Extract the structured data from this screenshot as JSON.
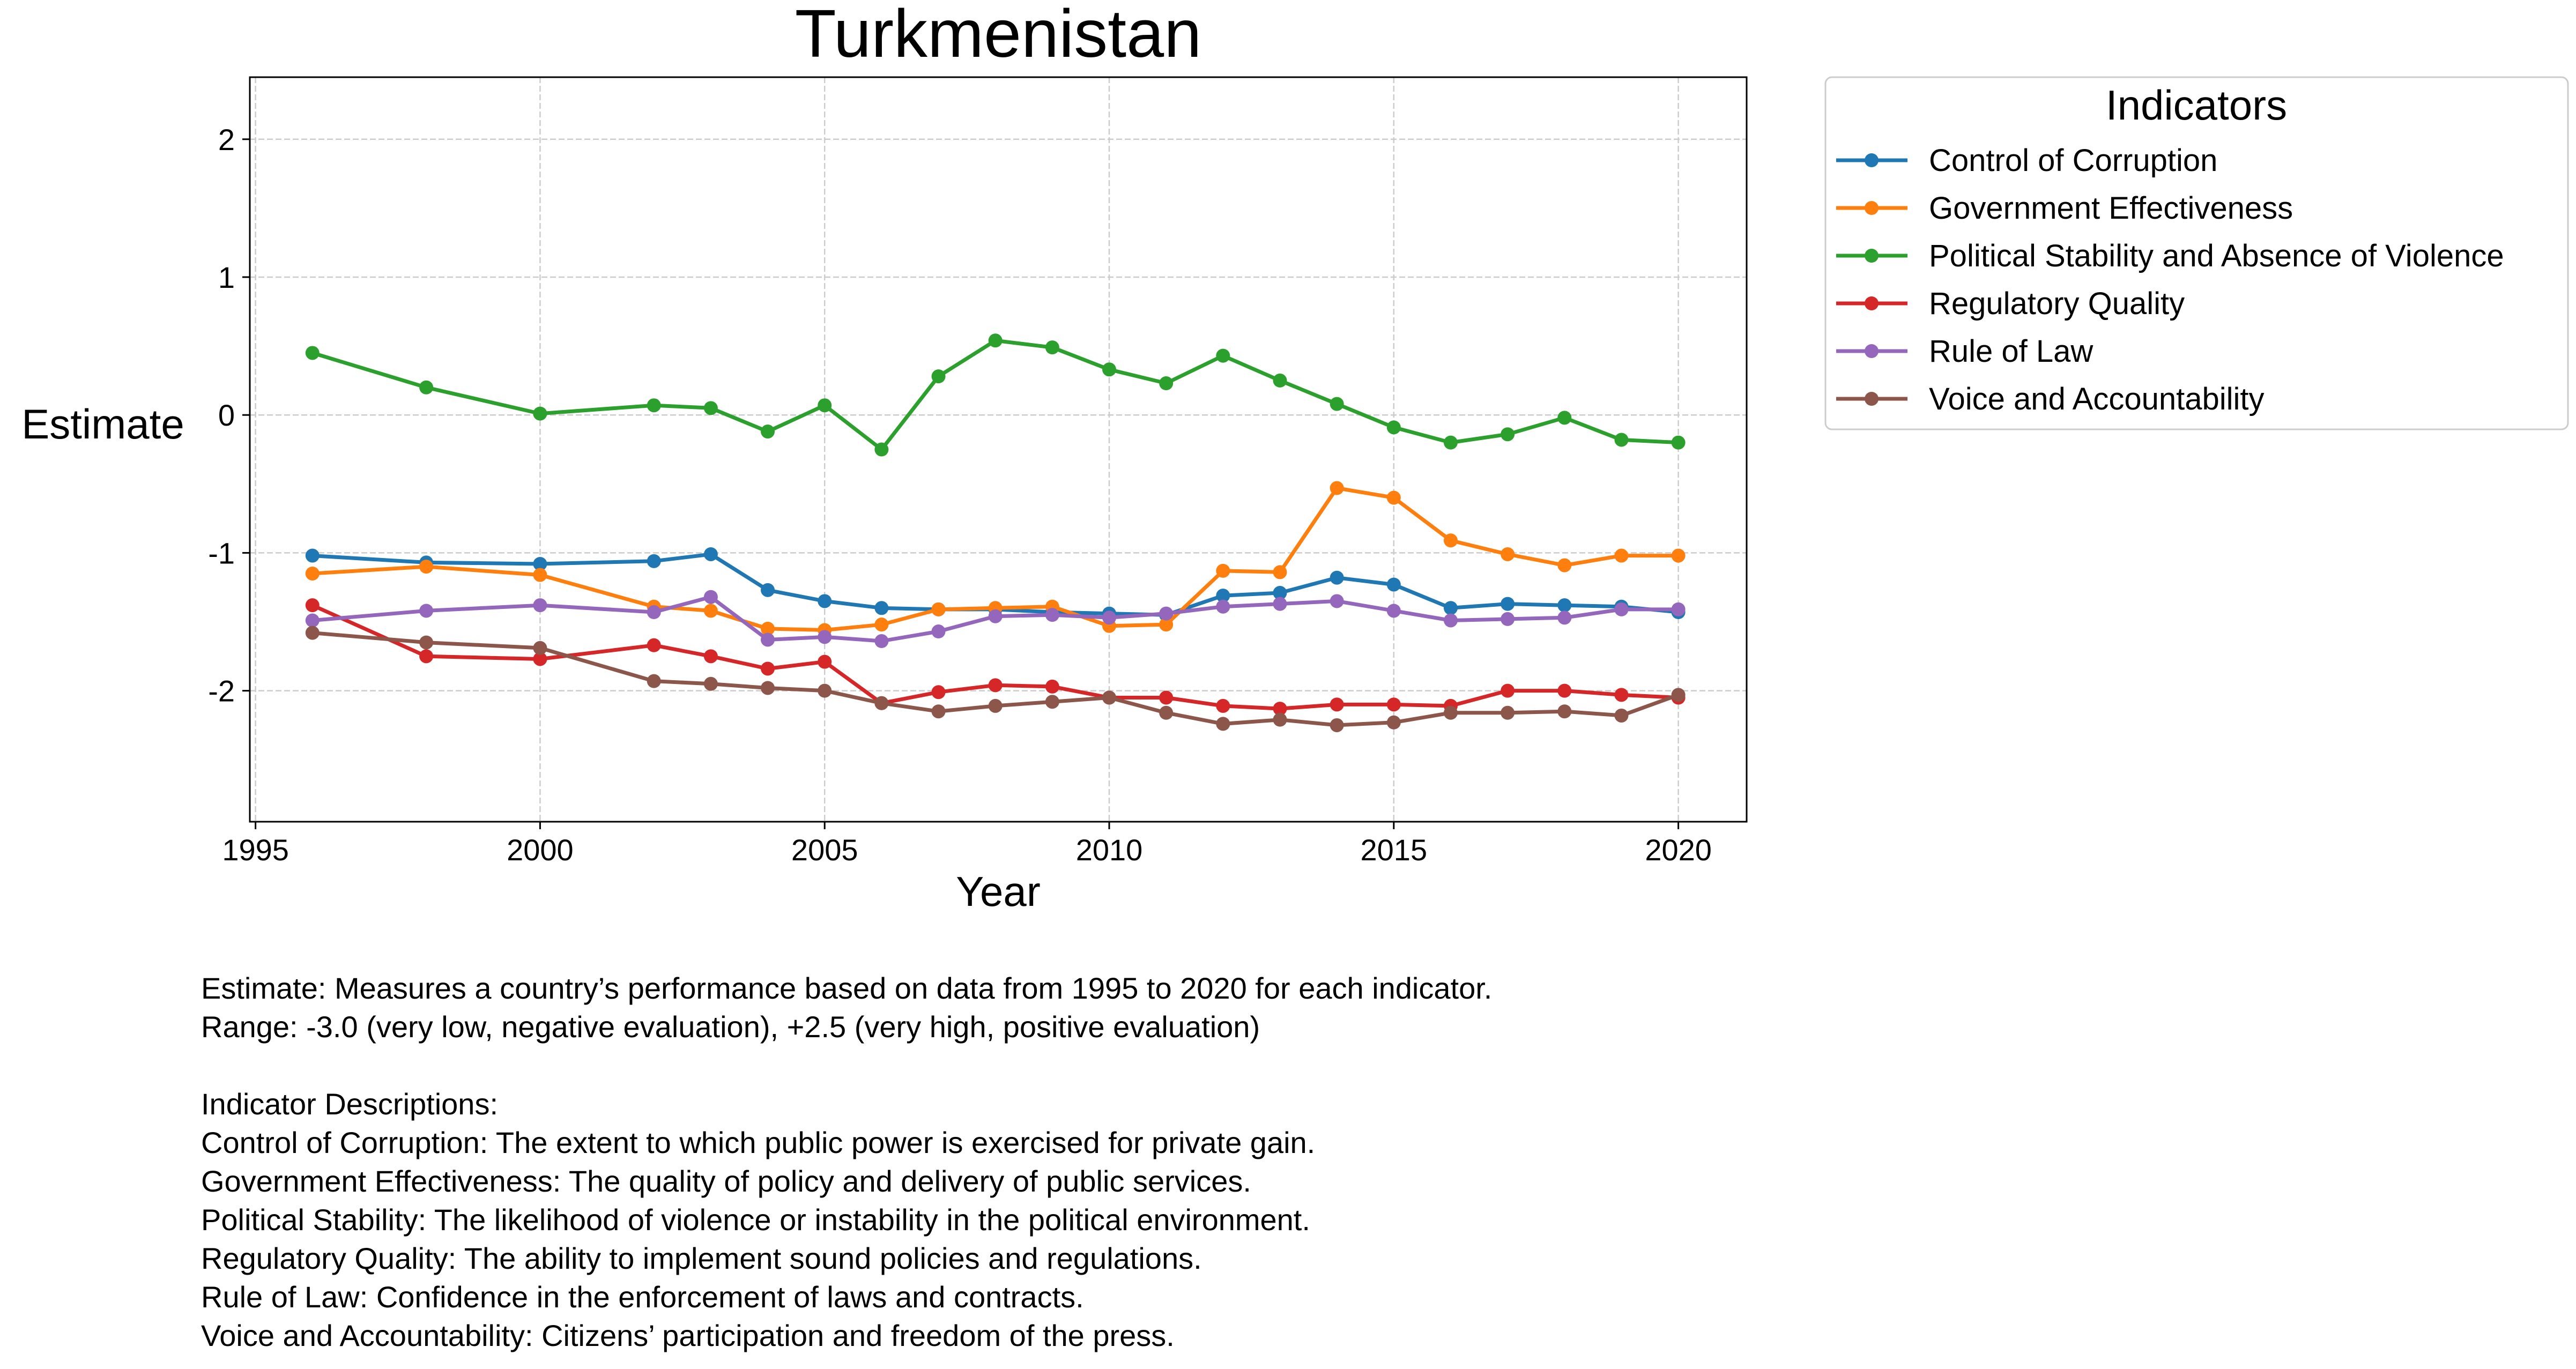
{
  "chart_data": {
    "type": "line",
    "title": "Turkmenistan",
    "xlabel": "Year",
    "ylabel": "Estimate",
    "xlim": [
      1994.9,
      2021.2
    ],
    "ylim": [
      -2.95,
      2.45
    ],
    "x_ticks": [
      1995,
      2000,
      2005,
      2010,
      2015,
      2020
    ],
    "y_ticks": [
      2,
      1,
      0,
      -1,
      -2
    ],
    "grid": true,
    "legend": {
      "title": "Indicators",
      "placement": "outside-top-right"
    },
    "x": [
      1996,
      1998,
      2000,
      2002,
      2003,
      2004,
      2005,
      2006,
      2007,
      2008,
      2009,
      2010,
      2011,
      2012,
      2013,
      2014,
      2015,
      2016,
      2017,
      2018,
      2019,
      2020
    ],
    "series": [
      {
        "name": "Control of Corruption",
        "color": "#1f77b4",
        "values": [
          -1.02,
          -1.07,
          -1.08,
          -1.06,
          -1.01,
          -1.27,
          -1.35,
          -1.4,
          -1.41,
          -1.41,
          -1.43,
          -1.44,
          -1.45,
          -1.31,
          -1.29,
          -1.18,
          -1.23,
          -1.4,
          -1.37,
          -1.38,
          -1.39,
          -1.43
        ]
      },
      {
        "name": "Government Effectiveness",
        "color": "#ff7f0e",
        "values": [
          -1.15,
          -1.1,
          -1.16,
          -1.39,
          -1.42,
          -1.55,
          -1.56,
          -1.52,
          -1.41,
          -1.4,
          -1.39,
          -1.53,
          -1.52,
          -1.13,
          -1.14,
          -0.53,
          -0.6,
          -0.91,
          -1.01,
          -1.09,
          -1.02,
          -1.02
        ]
      },
      {
        "name": "Political Stability and Absence of Violence",
        "color": "#2ca02c",
        "values": [
          0.45,
          0.2,
          0.01,
          0.07,
          0.05,
          -0.12,
          0.07,
          -0.25,
          0.28,
          0.54,
          0.49,
          0.33,
          0.23,
          0.43,
          0.25,
          0.08,
          -0.09,
          -0.2,
          -0.14,
          -0.02,
          -0.18,
          -0.2
        ]
      },
      {
        "name": "Regulatory Quality",
        "color": "#d62728",
        "values": [
          -1.38,
          -1.75,
          -1.77,
          -1.67,
          -1.75,
          -1.84,
          -1.79,
          -2.09,
          -2.01,
          -1.96,
          -1.97,
          -2.05,
          -2.05,
          -2.11,
          -2.13,
          -2.1,
          -2.1,
          -2.11,
          -2.0,
          -2.0,
          -2.03,
          -2.05
        ]
      },
      {
        "name": "Rule of Law",
        "color": "#9467bd",
        "values": [
          -1.49,
          -1.42,
          -1.38,
          -1.43,
          -1.32,
          -1.63,
          -1.61,
          -1.64,
          -1.57,
          -1.46,
          -1.45,
          -1.47,
          -1.44,
          -1.39,
          -1.37,
          -1.35,
          -1.42,
          -1.49,
          -1.48,
          -1.47,
          -1.41,
          -1.41
        ]
      },
      {
        "name": "Voice and Accountability",
        "color": "#8c564b",
        "values": [
          -1.58,
          -1.65,
          -1.69,
          -1.93,
          -1.95,
          -1.98,
          -2.0,
          -2.09,
          -2.15,
          -2.11,
          -2.08,
          -2.05,
          -2.16,
          -2.24,
          -2.21,
          -2.25,
          -2.23,
          -2.16,
          -2.16,
          -2.15,
          -2.18,
          -2.03
        ]
      }
    ]
  },
  "notes": {
    "estimate_line1": "Estimate: Measures a country’s performance based on data from 1995 to 2020 for each indicator.",
    "estimate_line2": "Range: -3.0 (very low, negative evaluation), +2.5 (very high, positive evaluation)",
    "descriptions_heading": "Indicator Descriptions:",
    "descriptions": [
      "Control of Corruption: The extent to which public power is exercised for private gain.",
      "Government Effectiveness: The quality of policy and delivery of public services.",
      "Political Stability: The likelihood of violence or instability in the political environment.",
      "Regulatory Quality: The ability to implement sound policies and regulations.",
      "Rule of Law: Confidence in the enforcement of laws and contracts.",
      "Voice and Accountability: Citizens’ participation and freedom of the press."
    ]
  }
}
